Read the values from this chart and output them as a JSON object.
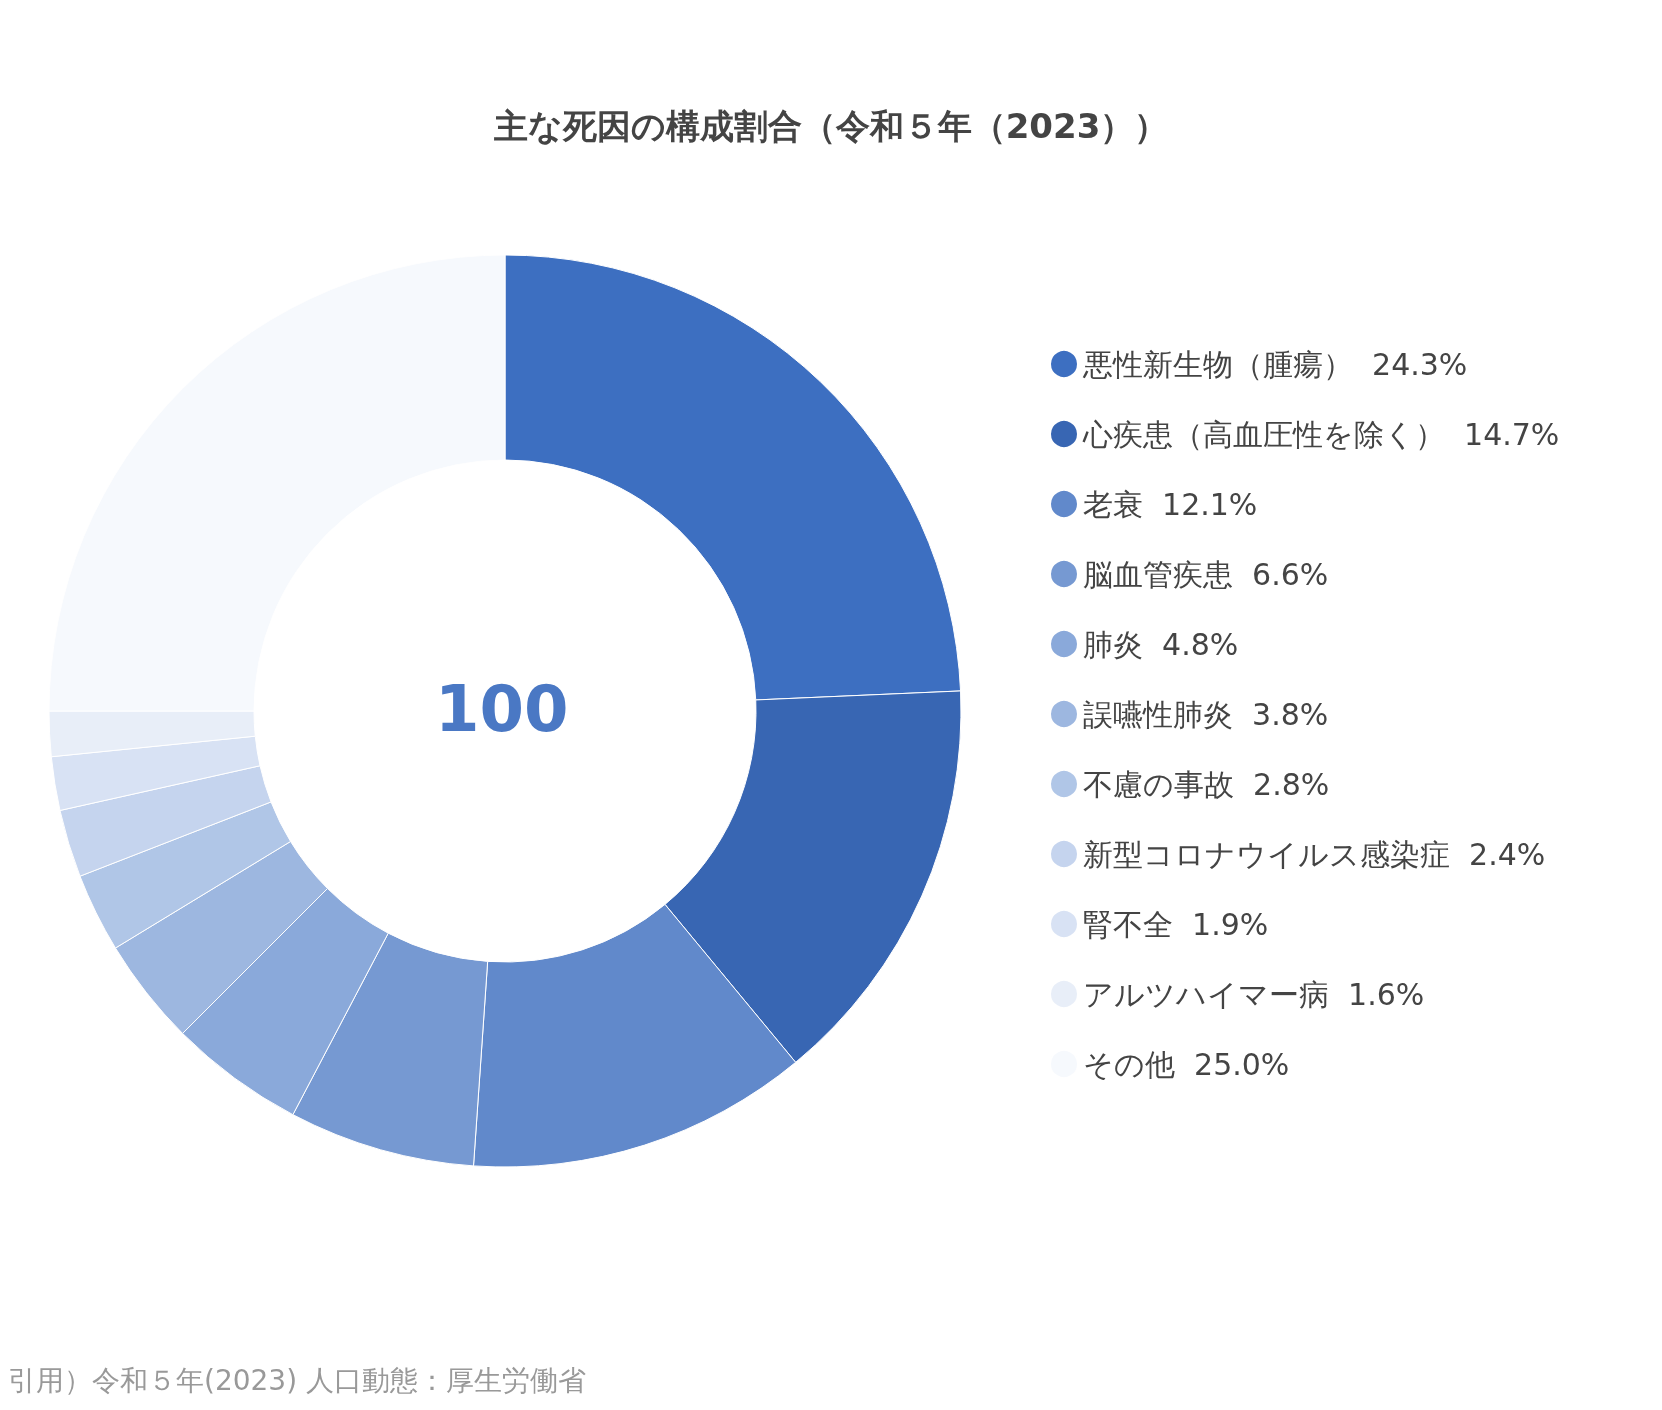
{
  "chart_data": {
    "type": "donut",
    "title": "主な死因の構成割合（令和５年（2023））",
    "categories": [
      "悪性新生物（腫瘍）",
      "心疾患（高血圧性を除く）",
      "老衰",
      "脳血管疾患",
      "肺炎",
      "誤嚥性肺炎",
      "不慮の事故",
      "新型コロナウイルス感染症",
      "腎不全",
      "アルツハイマー病",
      "その他"
    ],
    "values": [
      24.3,
      14.7,
      12.1,
      6.6,
      4.8,
      3.8,
      2.8,
      2.4,
      1.9,
      1.6,
      25.0
    ],
    "value_labels": [
      "24.3%",
      "14.7%",
      "12.1%",
      "6.6%",
      "4.8%",
      "3.8%",
      "2.8%",
      "2.4%",
      "1.9%",
      "1.6%",
      "25.0%"
    ],
    "colors": [
      "#3d6fc1",
      "#3866b3",
      "#6189cb",
      "#7699d2",
      "#8aa9da",
      "#9db7e0",
      "#b0c6e7",
      "#c5d4ee",
      "#d8e2f4",
      "#e8eef8",
      "#f6f9fd"
    ],
    "legend": "right",
    "annotations": [
      "100",
      "引用）令和５年(2023) 人口動態：厚生労働省"
    ]
  }
}
